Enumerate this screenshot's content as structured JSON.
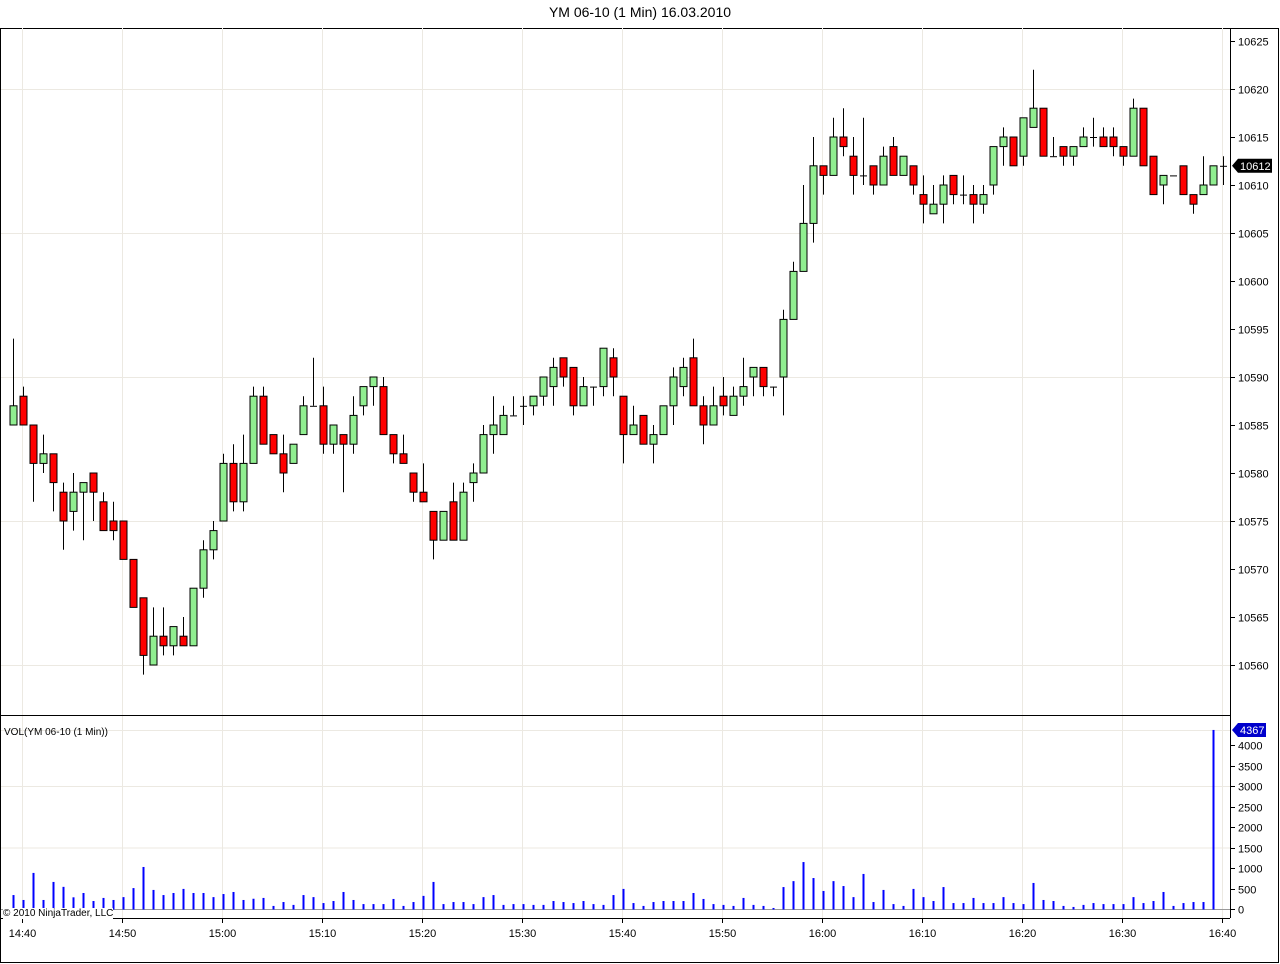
{
  "window_title": "YM 06-10 (1 Min)  16.03.2010",
  "indicator_label": "VOL(YM 06-10 (1 Min))",
  "copyright": "© 2010 NinjaTrader, LLC",
  "colors": {
    "up": "#90ee90",
    "down": "#ff0000",
    "outline": "#000000",
    "volume": "#0000ff",
    "grid": "#ece9e2"
  },
  "chart_data": [
    {
      "type": "candlestick",
      "title": "YM 06-10 (1 Min)  16.03.2010",
      "ylim": [
        10555,
        10626
      ],
      "y_ticks": [
        10560,
        10565,
        10570,
        10575,
        10580,
        10585,
        10590,
        10595,
        10600,
        10605,
        10610,
        10615,
        10620,
        10625
      ],
      "x_ticks": [
        "14:40",
        "14:50",
        "15:00",
        "15:10",
        "15:20",
        "15:30",
        "15:40",
        "15:50",
        "16:00",
        "16:10",
        "16:20",
        "16:30",
        "16:40"
      ],
      "grid": true,
      "last_price": 10612,
      "columns": [
        "time",
        "open",
        "high",
        "low",
        "close"
      ],
      "candles": [
        [
          "14:39",
          10585,
          10594,
          10585,
          10587
        ],
        [
          "14:40",
          10588,
          10589,
          10585,
          10585
        ],
        [
          "14:41",
          10585,
          10585,
          10577,
          10581
        ],
        [
          "14:42",
          10581,
          10584,
          10580,
          10582
        ],
        [
          "14:43",
          10582,
          10582,
          10576,
          10579
        ],
        [
          "14:44",
          10578,
          10579,
          10572,
          10575
        ],
        [
          "14:45",
          10576,
          10580,
          10574,
          10578
        ],
        [
          "14:46",
          10578,
          10579,
          10573,
          10579
        ],
        [
          "14:47",
          10580,
          10580,
          10575,
          10578
        ],
        [
          "14:48",
          10577,
          10578,
          10574,
          10574
        ],
        [
          "14:49",
          10575,
          10577,
          10573,
          10574
        ],
        [
          "14:50",
          10575,
          10575,
          10571,
          10571
        ],
        [
          "14:51",
          10571,
          10571,
          10566,
          10566
        ],
        [
          "14:52",
          10567,
          10567,
          10559,
          10561
        ],
        [
          "14:53",
          10560,
          10566,
          10560,
          10563
        ],
        [
          "14:54",
          10563,
          10566,
          10561,
          10562
        ],
        [
          "14:55",
          10562,
          10564,
          10561,
          10564
        ],
        [
          "14:56",
          10563,
          10565,
          10562,
          10562
        ],
        [
          "14:57",
          10562,
          10568,
          10562,
          10568
        ],
        [
          "14:58",
          10568,
          10573,
          10567,
          10572
        ],
        [
          "14:59",
          10572,
          10575,
          10571,
          10574
        ],
        [
          "15:00",
          10575,
          10582,
          10575,
          10581
        ],
        [
          "15:01",
          10581,
          10583,
          10576,
          10577
        ],
        [
          "15:02",
          10577,
          10584,
          10576,
          10581
        ],
        [
          "15:03",
          10581,
          10589,
          10581,
          10588
        ],
        [
          "15:04",
          10588,
          10589,
          10583,
          10583
        ],
        [
          "15:05",
          10584,
          10584,
          10582,
          10582
        ],
        [
          "15:06",
          10582,
          10584,
          10578,
          10580
        ],
        [
          "15:07",
          10581,
          10583,
          10581,
          10583
        ],
        [
          "15:08",
          10584,
          10588,
          10584,
          10587
        ],
        [
          "15:09",
          10587,
          10592,
          10587,
          10587
        ],
        [
          "15:10",
          10587,
          10589,
          10582,
          10583
        ],
        [
          "15:11",
          10583,
          10585,
          10582,
          10585
        ],
        [
          "15:12",
          10584,
          10584,
          10578,
          10583
        ],
        [
          "15:13",
          10583,
          10588,
          10582,
          10586
        ],
        [
          "15:14",
          10587,
          10589,
          10586,
          10589
        ],
        [
          "15:15",
          10589,
          10590,
          10587,
          10590
        ],
        [
          "15:16",
          10589,
          10590,
          10584,
          10584
        ],
        [
          "15:17",
          10584,
          10584,
          10581,
          10582
        ],
        [
          "15:18",
          10582,
          10584,
          10581,
          10581
        ],
        [
          "15:19",
          10580,
          10580,
          10577,
          10578
        ],
        [
          "15:20",
          10578,
          10581,
          10577,
          10577
        ],
        [
          "15:21",
          10576,
          10576,
          10571,
          10573
        ],
        [
          "15:22",
          10573,
          10576,
          10573,
          10576
        ],
        [
          "15:23",
          10577,
          10579,
          10573,
          10573
        ],
        [
          "15:24",
          10573,
          10579,
          10573,
          10578
        ],
        [
          "15:25",
          10579,
          10581,
          10577,
          10580
        ],
        [
          "15:26",
          10580,
          10585,
          10580,
          10584
        ],
        [
          "15:27",
          10584,
          10588,
          10582,
          10585
        ],
        [
          "15:28",
          10584,
          10587,
          10584,
          10586
        ],
        [
          "15:29",
          10586,
          10588,
          10586,
          10586
        ],
        [
          "15:30",
          10587,
          10588,
          10585,
          10587
        ],
        [
          "15:31",
          10587,
          10588,
          10586,
          10588
        ],
        [
          "15:32",
          10588,
          10590,
          10587,
          10590
        ],
        [
          "15:33",
          10589,
          10592,
          10587,
          10591
        ],
        [
          "15:34",
          10592,
          10592,
          10589,
          10590
        ],
        [
          "15:35",
          10591,
          10591,
          10586,
          10587
        ],
        [
          "15:36",
          10587,
          10590,
          10587,
          10589
        ],
        [
          "15:37",
          10589,
          10589,
          10587,
          10589
        ],
        [
          "15:38",
          10589,
          10593,
          10588,
          10593
        ],
        [
          "15:39",
          10592,
          10593,
          10588,
          10590
        ],
        [
          "15:40",
          10588,
          10588,
          10581,
          10584
        ],
        [
          "15:41",
          10584,
          10587,
          10584,
          10585
        ],
        [
          "15:42",
          10586,
          10586,
          10583,
          10583
        ],
        [
          "15:43",
          10583,
          10585,
          10581,
          10584
        ],
        [
          "15:44",
          10584,
          10587,
          10584,
          10587
        ],
        [
          "15:45",
          10587,
          10591,
          10585,
          10590
        ],
        [
          "15:46",
          10589,
          10592,
          10588,
          10591
        ],
        [
          "15:47",
          10592,
          10594,
          10587,
          10587
        ],
        [
          "15:48",
          10587,
          10588,
          10583,
          10585
        ],
        [
          "15:49",
          10585,
          10589,
          10585,
          10587
        ],
        [
          "15:50",
          10588,
          10590,
          10586,
          10587
        ],
        [
          "15:51",
          10586,
          10589,
          10586,
          10588
        ],
        [
          "15:52",
          10588,
          10592,
          10587,
          10589
        ],
        [
          "15:53",
          10590,
          10591,
          10588,
          10591
        ],
        [
          "15:54",
          10591,
          10591,
          10588,
          10589
        ],
        [
          "15:55",
          10589,
          10589,
          10588,
          10589
        ],
        [
          "15:56",
          10590,
          10597,
          10586,
          10596
        ],
        [
          "15:57",
          10596,
          10602,
          10596,
          10601
        ],
        [
          "15:58",
          10601,
          10610,
          10601,
          10606
        ],
        [
          "15:59",
          10606,
          10615,
          10604,
          10612
        ],
        [
          "16:00",
          10612,
          10612,
          10609,
          10611
        ],
        [
          "16:01",
          10611,
          10617,
          10611,
          10615
        ],
        [
          "16:02",
          10615,
          10618,
          10613,
          10614
        ],
        [
          "16:03",
          10613,
          10615,
          10609,
          10611
        ],
        [
          "16:04",
          10611,
          10617,
          10610,
          10611
        ],
        [
          "16:05",
          10612,
          10612,
          10609,
          10610
        ],
        [
          "16:06",
          10610,
          10614,
          10610,
          10613
        ],
        [
          "16:07",
          10614,
          10615,
          10611,
          10611
        ],
        [
          "16:08",
          10611,
          10613,
          10611,
          10613
        ],
        [
          "16:09",
          10612,
          10612,
          10609,
          10610
        ],
        [
          "16:10",
          10609,
          10611,
          10606,
          10608
        ],
        [
          "16:11",
          10607,
          10610,
          10607,
          10608
        ],
        [
          "16:12",
          10608,
          10611,
          10606,
          10610
        ],
        [
          "16:13",
          10611,
          10611,
          10608,
          10609
        ],
        [
          "16:14",
          10609,
          10611,
          10608,
          10609
        ],
        [
          "16:15",
          10609,
          10610,
          10606,
          10608
        ],
        [
          "16:16",
          10608,
          10610,
          10607,
          10609
        ],
        [
          "16:17",
          10610,
          10614,
          10609,
          10614
        ],
        [
          "16:18",
          10614,
          10616,
          10612,
          10615
        ],
        [
          "16:19",
          10615,
          10615,
          10612,
          10612
        ],
        [
          "16:20",
          10613,
          10617,
          10612,
          10617
        ],
        [
          "16:21",
          10616,
          10622,
          10616,
          10618
        ],
        [
          "16:22",
          10618,
          10618,
          10613,
          10613
        ],
        [
          "16:23",
          10613,
          10615,
          10613,
          10613
        ],
        [
          "16:24",
          10614,
          10614,
          10612,
          10613
        ],
        [
          "16:25",
          10613,
          10614,
          10612,
          10614
        ],
        [
          "16:26",
          10614,
          10616,
          10614,
          10615
        ],
        [
          "16:27",
          10615,
          10617,
          10614,
          10615
        ],
        [
          "16:28",
          10615,
          10616,
          10614,
          10614
        ],
        [
          "16:29",
          10615,
          10616,
          10613,
          10614
        ],
        [
          "16:30",
          10614,
          10614,
          10612,
          10613
        ],
        [
          "16:31",
          10613,
          10619,
          10613,
          10618
        ],
        [
          "16:32",
          10618,
          10618,
          10612,
          10612
        ],
        [
          "16:33",
          10613,
          10613,
          10609,
          10609
        ],
        [
          "16:34",
          10610,
          10611,
          10608,
          10611
        ],
        [
          "16:35",
          10611,
          10611,
          10611,
          10611
        ],
        [
          "16:36",
          10612,
          10612,
          10609,
          10609
        ],
        [
          "16:37",
          10609,
          10609,
          10607,
          10608
        ],
        [
          "16:38",
          10609,
          10613,
          10609,
          10610
        ],
        [
          "16:39",
          10610,
          10612,
          10610,
          10612
        ],
        [
          "16:40",
          10612,
          10613,
          10610,
          10612
        ]
      ]
    },
    {
      "type": "bar",
      "title": "VOL(YM 06-10 (1 Min))",
      "ylim": [
        0,
        4600
      ],
      "y_ticks": [
        0,
        500,
        1000,
        1500,
        2000,
        2500,
        3000,
        3500,
        4000
      ],
      "last_value": 4367,
      "values": [
        340,
        220,
        880,
        220,
        660,
        540,
        285,
        390,
        195,
        270,
        220,
        290,
        510,
        1025,
        465,
        340,
        390,
        490,
        390,
        390,
        290,
        365,
        415,
        220,
        250,
        270,
        75,
        170,
        100,
        340,
        290,
        145,
        195,
        415,
        220,
        120,
        120,
        120,
        245,
        75,
        170,
        320,
        660,
        120,
        170,
        170,
        120,
        290,
        340,
        100,
        120,
        120,
        100,
        100,
        195,
        170,
        145,
        195,
        120,
        100,
        340,
        490,
        145,
        75,
        170,
        195,
        195,
        195,
        390,
        245,
        120,
        100,
        75,
        270,
        100,
        75,
        25,
        535,
        680,
        1145,
        755,
        440,
        680,
        560,
        290,
        855,
        170,
        465,
        120,
        75,
        490,
        290,
        195,
        535,
        145,
        145,
        270,
        145,
        145,
        290,
        145,
        120,
        635,
        220,
        195,
        75,
        50,
        100,
        145,
        120,
        120,
        120,
        290,
        145,
        195,
        415,
        75,
        145,
        170,
        170,
        4367,
        0
      ]
    }
  ]
}
